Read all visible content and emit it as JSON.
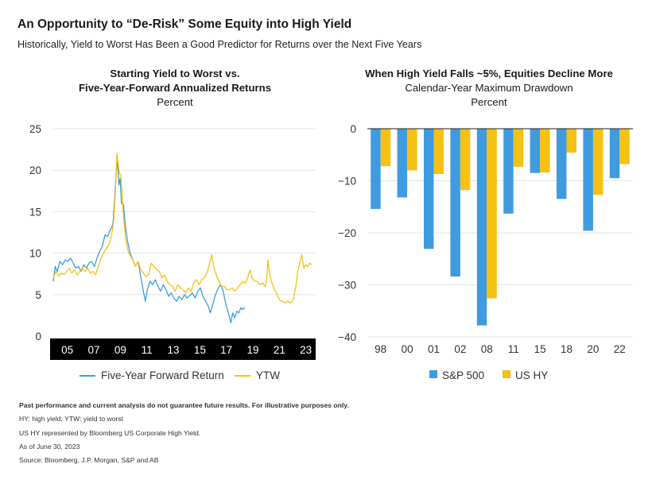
{
  "header": {
    "title": "An Opportunity to “De-Risk” Some Equity into High Yield",
    "subtitle": "Historically, Yield to Worst Has Been a Good Predictor for Returns over the Next Five Years"
  },
  "colors": {
    "blue": "#3f9be0",
    "yellow": "#f5c113",
    "axis_bg": "#000000"
  },
  "chart_data": [
    {
      "type": "line",
      "title_line1": "Starting Yield to Worst vs.",
      "title_line2": "Five-Year-Forward Annualized Returns",
      "unit": "Percent",
      "ylim": [
        0,
        25
      ],
      "yticks": [
        "25",
        "20",
        "15",
        "10",
        "5",
        "0"
      ],
      "xlim": [
        2004.0,
        2023.8
      ],
      "xticks": [
        {
          "label": "05",
          "x": 2005.0
        },
        {
          "label": "07",
          "x": 2007.0
        },
        {
          "label": "09",
          "x": 2009.0
        },
        {
          "label": "11",
          "x": 2011.0
        },
        {
          "label": "13",
          "x": 2013.0
        },
        {
          "label": "15",
          "x": 2015.0
        },
        {
          "label": "17",
          "x": 2017.0
        },
        {
          "label": "19",
          "x": 2019.0
        },
        {
          "label": "21",
          "x": 2021.0
        },
        {
          "label": "23",
          "x": 2023.0
        }
      ],
      "grid": true,
      "legend_position": "bottom",
      "series": [
        {
          "name": "Five-Year Forward Return",
          "color": "#3f9be0",
          "points": [
            [
              2004.0,
              6.6
            ],
            [
              2004.15,
              8.4
            ],
            [
              2004.3,
              7.8
            ],
            [
              2004.5,
              9.0
            ],
            [
              2004.7,
              8.6
            ],
            [
              2004.9,
              9.2
            ],
            [
              2005.1,
              9.0
            ],
            [
              2005.3,
              9.4
            ],
            [
              2005.5,
              8.8
            ],
            [
              2005.7,
              8.2
            ],
            [
              2005.9,
              8.4
            ],
            [
              2006.1,
              7.8
            ],
            [
              2006.3,
              8.6
            ],
            [
              2006.5,
              8.2
            ],
            [
              2006.7,
              8.8
            ],
            [
              2006.9,
              9.0
            ],
            [
              2007.1,
              8.4
            ],
            [
              2007.3,
              9.4
            ],
            [
              2007.5,
              10.2
            ],
            [
              2007.7,
              10.8
            ],
            [
              2007.9,
              12.2
            ],
            [
              2008.1,
              12.0
            ],
            [
              2008.3,
              12.8
            ],
            [
              2008.5,
              13.4
            ],
            [
              2008.65,
              17.0
            ],
            [
              2008.75,
              19.8
            ],
            [
              2008.85,
              21.2
            ],
            [
              2008.95,
              18.2
            ],
            [
              2009.05,
              19.0
            ],
            [
              2009.15,
              16.0
            ],
            [
              2009.3,
              15.8
            ],
            [
              2009.45,
              13.2
            ],
            [
              2009.6,
              11.5
            ],
            [
              2009.8,
              10.0
            ],
            [
              2010.0,
              9.2
            ],
            [
              2010.2,
              8.4
            ],
            [
              2010.4,
              9.0
            ],
            [
              2010.6,
              7.2
            ],
            [
              2010.8,
              5.4
            ],
            [
              2010.95,
              4.2
            ],
            [
              2011.1,
              5.6
            ],
            [
              2011.3,
              6.6
            ],
            [
              2011.5,
              6.2
            ],
            [
              2011.7,
              6.8
            ],
            [
              2011.9,
              6.0
            ],
            [
              2012.1,
              5.4
            ],
            [
              2012.3,
              6.2
            ],
            [
              2012.5,
              5.6
            ],
            [
              2012.7,
              4.8
            ],
            [
              2012.9,
              5.2
            ],
            [
              2013.1,
              4.6
            ],
            [
              2013.3,
              4.2
            ],
            [
              2013.5,
              4.8
            ],
            [
              2013.7,
              4.4
            ],
            [
              2013.9,
              5.0
            ],
            [
              2014.1,
              4.6
            ],
            [
              2014.3,
              4.9
            ],
            [
              2014.5,
              5.2
            ],
            [
              2014.7,
              4.6
            ],
            [
              2014.9,
              5.4
            ],
            [
              2015.1,
              5.8
            ],
            [
              2015.3,
              4.8
            ],
            [
              2015.5,
              4.2
            ],
            [
              2015.7,
              3.6
            ],
            [
              2015.85,
              2.8
            ],
            [
              2016.0,
              3.6
            ],
            [
              2016.2,
              4.8
            ],
            [
              2016.4,
              5.6
            ],
            [
              2016.6,
              6.2
            ],
            [
              2016.8,
              5.6
            ],
            [
              2016.95,
              4.4
            ],
            [
              2017.1,
              3.4
            ],
            [
              2017.25,
              2.6
            ],
            [
              2017.4,
              1.6
            ],
            [
              2017.55,
              2.8
            ],
            [
              2017.7,
              2.2
            ],
            [
              2017.85,
              3.0
            ],
            [
              2018.0,
              2.8
            ],
            [
              2018.15,
              3.4
            ],
            [
              2018.3,
              3.2
            ],
            [
              2018.45,
              3.5
            ]
          ]
        },
        {
          "name": "YTW",
          "color": "#f5c113",
          "points": [
            [
              2004.0,
              7.0
            ],
            [
              2004.2,
              7.8
            ],
            [
              2004.4,
              7.2
            ],
            [
              2004.6,
              7.6
            ],
            [
              2004.8,
              7.4
            ],
            [
              2005.0,
              7.8
            ],
            [
              2005.2,
              8.2
            ],
            [
              2005.4,
              7.6
            ],
            [
              2005.6,
              8.0
            ],
            [
              2005.8,
              7.4
            ],
            [
              2006.0,
              7.8
            ],
            [
              2006.2,
              8.2
            ],
            [
              2006.4,
              7.8
            ],
            [
              2006.6,
              8.2
            ],
            [
              2006.8,
              7.6
            ],
            [
              2007.0,
              7.8
            ],
            [
              2007.2,
              7.4
            ],
            [
              2007.4,
              8.4
            ],
            [
              2007.6,
              9.4
            ],
            [
              2007.8,
              10.0
            ],
            [
              2008.0,
              10.6
            ],
            [
              2008.2,
              11.0
            ],
            [
              2008.4,
              12.2
            ],
            [
              2008.55,
              13.6
            ],
            [
              2008.7,
              17.6
            ],
            [
              2008.8,
              22.0
            ],
            [
              2008.9,
              20.6
            ],
            [
              2009.0,
              19.6
            ],
            [
              2009.1,
              19.4
            ],
            [
              2009.25,
              15.4
            ],
            [
              2009.45,
              11.8
            ],
            [
              2009.65,
              10.2
            ],
            [
              2009.85,
              9.6
            ],
            [
              2010.0,
              9.2
            ],
            [
              2010.2,
              8.4
            ],
            [
              2010.4,
              9.0
            ],
            [
              2010.6,
              8.0
            ],
            [
              2010.8,
              7.6
            ],
            [
              2011.0,
              7.2
            ],
            [
              2011.2,
              7.4
            ],
            [
              2011.4,
              8.8
            ],
            [
              2011.6,
              8.4
            ],
            [
              2011.8,
              8.0
            ],
            [
              2012.0,
              7.8
            ],
            [
              2012.2,
              7.0
            ],
            [
              2012.4,
              7.4
            ],
            [
              2012.6,
              6.6
            ],
            [
              2012.8,
              6.2
            ],
            [
              2013.0,
              6.0
            ],
            [
              2013.2,
              5.4
            ],
            [
              2013.4,
              6.2
            ],
            [
              2013.6,
              5.8
            ],
            [
              2013.8,
              5.6
            ],
            [
              2014.0,
              5.2
            ],
            [
              2014.2,
              5.8
            ],
            [
              2014.4,
              5.4
            ],
            [
              2014.6,
              6.4
            ],
            [
              2014.8,
              6.8
            ],
            [
              2015.0,
              6.2
            ],
            [
              2015.2,
              6.8
            ],
            [
              2015.4,
              7.0
            ],
            [
              2015.6,
              7.6
            ],
            [
              2015.8,
              8.8
            ],
            [
              2015.95,
              9.8
            ],
            [
              2016.1,
              8.4
            ],
            [
              2016.3,
              7.4
            ],
            [
              2016.5,
              6.6
            ],
            [
              2016.7,
              6.0
            ],
            [
              2016.9,
              6.0
            ],
            [
              2017.1,
              5.6
            ],
            [
              2017.3,
              5.6
            ],
            [
              2017.5,
              5.8
            ],
            [
              2017.7,
              5.4
            ],
            [
              2017.9,
              5.8
            ],
            [
              2018.1,
              6.2
            ],
            [
              2018.3,
              6.6
            ],
            [
              2018.5,
              6.4
            ],
            [
              2018.7,
              7.2
            ],
            [
              2018.85,
              8.0
            ],
            [
              2019.0,
              7.0
            ],
            [
              2019.2,
              6.6
            ],
            [
              2019.4,
              6.6
            ],
            [
              2019.6,
              6.2
            ],
            [
              2019.8,
              6.4
            ],
            [
              2020.0,
              6.0
            ],
            [
              2020.1,
              6.6
            ],
            [
              2020.2,
              9.2
            ],
            [
              2020.3,
              7.6
            ],
            [
              2020.5,
              6.4
            ],
            [
              2020.7,
              5.6
            ],
            [
              2020.9,
              5.0
            ],
            [
              2021.1,
              4.3
            ],
            [
              2021.3,
              4.2
            ],
            [
              2021.5,
              4.0
            ],
            [
              2021.7,
              4.2
            ],
            [
              2021.9,
              4.0
            ],
            [
              2022.1,
              4.4
            ],
            [
              2022.3,
              6.0
            ],
            [
              2022.45,
              7.8
            ],
            [
              2022.6,
              8.8
            ],
            [
              2022.75,
              9.8
            ],
            [
              2022.9,
              8.2
            ],
            [
              2023.05,
              8.6
            ],
            [
              2023.2,
              8.4
            ],
            [
              2023.35,
              8.8
            ],
            [
              2023.5,
              8.6
            ]
          ]
        }
      ]
    },
    {
      "type": "bar",
      "title": "When High Yield Falls ~5%, Equities Decline More",
      "subtitle": "Calendar-Year Maximum Drawdown",
      "unit": "Percent",
      "ylim": [
        -40,
        0
      ],
      "yticks": [
        "0",
        "−10",
        "−20",
        "−30",
        "−40"
      ],
      "categories": [
        "98",
        "00",
        "01",
        "02",
        "08",
        "11",
        "15",
        "18",
        "20",
        "22"
      ],
      "grid": true,
      "legend_position": "bottom",
      "series": [
        {
          "name": "S&P 500",
          "color": "#3f9be0",
          "values": [
            -15.4,
            -13.2,
            -23.1,
            -28.4,
            -37.8,
            -16.3,
            -8.5,
            -13.5,
            -19.6,
            -9.5
          ]
        },
        {
          "name": "US HY",
          "color": "#f5c113",
          "values": [
            -7.2,
            -8.0,
            -8.7,
            -11.8,
            -32.6,
            -7.3,
            -8.4,
            -4.6,
            -12.7,
            -6.8
          ]
        }
      ]
    }
  ],
  "footnotes": {
    "disclaimer": "Past performance and current analysis do not guarantee future results. For illustrative purposes only.",
    "abbrev": "HY: high yield; YTW: yield to worst",
    "index": "US HY represented by Bloomberg US Corporate High Yield.",
    "asof": "As of June 30, 2023",
    "source": "Source: Bloomberg, J.P. Morgan, S&P and AB"
  }
}
